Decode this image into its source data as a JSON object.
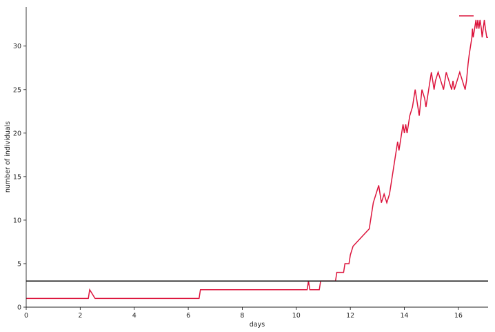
{
  "chart_data": {
    "type": "line",
    "xlabel": "days",
    "ylabel": "number of individuals",
    "xlim": [
      0,
      17.1
    ],
    "ylim": [
      0,
      34.5
    ],
    "xticks": [
      0,
      2,
      4,
      6,
      8,
      10,
      12,
      14,
      16
    ],
    "yticks": [
      0,
      5,
      10,
      15,
      20,
      25,
      30
    ],
    "grid": false,
    "legend": {
      "placement": "top-right",
      "entries": [
        ""
      ]
    },
    "reference_line": {
      "y": 3,
      "color": "#262626"
    },
    "series": [
      {
        "color": "#dc143c",
        "x": [
          0,
          2.3,
          2.35,
          2.55,
          6.4,
          6.45,
          10.4,
          10.45,
          10.5,
          10.6,
          10.85,
          10.9,
          11.45,
          11.5,
          11.75,
          11.8,
          11.95,
          12.0,
          12.1,
          12.4,
          12.7,
          12.75,
          12.8,
          12.85,
          12.95,
          13.05,
          13.1,
          13.15,
          13.25,
          13.35,
          13.45,
          13.5,
          13.55,
          13.6,
          13.65,
          13.7,
          13.75,
          13.8,
          13.85,
          13.9,
          13.95,
          14.0,
          14.05,
          14.1,
          14.15,
          14.2,
          14.3,
          14.35,
          14.4,
          14.45,
          14.55,
          14.65,
          14.75,
          14.8,
          14.85,
          14.9,
          14.95,
          15.0,
          15.05,
          15.1,
          15.15,
          15.25,
          15.35,
          15.45,
          15.5,
          15.55,
          15.65,
          15.75,
          15.8,
          15.85,
          15.95,
          16.05,
          16.15,
          16.25,
          16.3,
          16.33,
          16.36,
          16.4,
          16.45,
          16.5,
          16.52,
          16.55,
          16.6,
          16.65,
          16.68,
          16.72,
          16.76,
          16.8,
          16.85,
          16.88,
          16.92,
          16.96,
          17.0,
          17.05,
          17.1
        ],
        "y": [
          1,
          1,
          2,
          1,
          1,
          2,
          2,
          3,
          2,
          2,
          2,
          3,
          3,
          4,
          4,
          5,
          5,
          6,
          7,
          8,
          9,
          10,
          11,
          12,
          13,
          14,
          13,
          12,
          13,
          12,
          13,
          14,
          15,
          16,
          17,
          18,
          19,
          18,
          19,
          20,
          21,
          20,
          21,
          20,
          21,
          22,
          23,
          24,
          25,
          24,
          22,
          25,
          24,
          23,
          24,
          25,
          26,
          27,
          26,
          25,
          26,
          27,
          26,
          25,
          26,
          27,
          26,
          25,
          26,
          25,
          26,
          27,
          26,
          25,
          26,
          27,
          28,
          29,
          30,
          31,
          32,
          31,
          32,
          33,
          32,
          33,
          32,
          33,
          32,
          31,
          32,
          33,
          32,
          31,
          31
        ]
      }
    ]
  }
}
